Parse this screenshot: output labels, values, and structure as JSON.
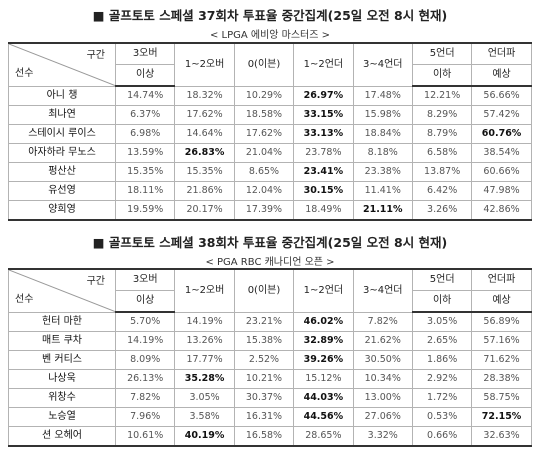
{
  "tables": [
    {
      "title": "■ 골프토토 스페셜 37회차 투표율 중간집계(25일 오전 8시 현재)",
      "subtitle": "< LPGA 에비앙 마스터즈 >",
      "header_label_top": "구간",
      "header_label_bottom": "선수",
      "columns": [
        {
          "line1": "3오버",
          "line2": "이상"
        },
        {
          "line1": "1~2오버",
          "line2": ""
        },
        {
          "line1": "0(이븐)",
          "line2": ""
        },
        {
          "line1": "1~2언더",
          "line2": ""
        },
        {
          "line1": "3~4언더",
          "line2": ""
        },
        {
          "line1": "5언더",
          "line2": "이하"
        },
        {
          "line1": "언더파",
          "line2": "예상"
        }
      ],
      "rows": [
        {
          "name": "아니 챙",
          "values": [
            "14.74%",
            "18.32%",
            "10.29%",
            "26.97%",
            "17.48%",
            "12.21%",
            "56.66%"
          ],
          "bold": [
            3
          ]
        },
        {
          "name": "최나연",
          "values": [
            "6.37%",
            "17.62%",
            "18.58%",
            "33.15%",
            "15.98%",
            "8.29%",
            "57.42%"
          ],
          "bold": [
            3
          ]
        },
        {
          "name": "스테이시 루이스",
          "values": [
            "6.98%",
            "14.64%",
            "17.62%",
            "33.13%",
            "18.84%",
            "8.79%",
            "60.76%"
          ],
          "bold": [
            3,
            6
          ]
        },
        {
          "name": "아자하라 무노스",
          "values": [
            "13.59%",
            "26.83%",
            "21.04%",
            "23.78%",
            "8.18%",
            "6.58%",
            "38.54%"
          ],
          "bold": [
            1
          ]
        },
        {
          "name": "펑산산",
          "values": [
            "15.35%",
            "15.35%",
            "8.65%",
            "23.41%",
            "23.38%",
            "13.87%",
            "60.66%"
          ],
          "bold": [
            3
          ]
        },
        {
          "name": "유선영",
          "values": [
            "18.11%",
            "21.86%",
            "12.04%",
            "30.15%",
            "11.41%",
            "6.42%",
            "47.98%"
          ],
          "bold": [
            3
          ]
        },
        {
          "name": "양희영",
          "values": [
            "19.59%",
            "20.17%",
            "17.39%",
            "18.49%",
            "21.11%",
            "3.26%",
            "42.86%"
          ],
          "bold": [
            4
          ]
        }
      ]
    },
    {
      "title": "■ 골프토토 스페셜 38회차 투표율 중간집계(25일 오전 8시 현재)",
      "subtitle": "< PGA RBC 캐나디언 오픈 >",
      "header_label_top": "구간",
      "header_label_bottom": "선수",
      "columns": [
        {
          "line1": "3오버",
          "line2": "이상"
        },
        {
          "line1": "1~2오버",
          "line2": ""
        },
        {
          "line1": "0(이븐)",
          "line2": ""
        },
        {
          "line1": "1~2언더",
          "line2": ""
        },
        {
          "line1": "3~4언더",
          "line2": ""
        },
        {
          "line1": "5언더",
          "line2": "이하"
        },
        {
          "line1": "언더파",
          "line2": "예상"
        }
      ],
      "rows": [
        {
          "name": "헌터 마한",
          "values": [
            "5.70%",
            "14.19%",
            "23.21%",
            "46.02%",
            "7.82%",
            "3.05%",
            "56.89%"
          ],
          "bold": [
            3
          ]
        },
        {
          "name": "매트 쿠차",
          "values": [
            "14.19%",
            "13.26%",
            "15.38%",
            "32.89%",
            "21.62%",
            "2.65%",
            "57.16%"
          ],
          "bold": [
            3
          ]
        },
        {
          "name": "벤 커티스",
          "values": [
            "8.09%",
            "17.77%",
            "2.52%",
            "39.26%",
            "30.50%",
            "1.86%",
            "71.62%"
          ],
          "bold": [
            3
          ]
        },
        {
          "name": "나상욱",
          "values": [
            "26.13%",
            "35.28%",
            "10.21%",
            "15.12%",
            "10.34%",
            "2.92%",
            "28.38%"
          ],
          "bold": [
            1
          ]
        },
        {
          "name": "위창수",
          "values": [
            "7.82%",
            "3.05%",
            "30.37%",
            "44.03%",
            "13.00%",
            "1.72%",
            "58.75%"
          ],
          "bold": [
            3
          ]
        },
        {
          "name": "노승열",
          "values": [
            "7.96%",
            "3.58%",
            "16.31%",
            "44.56%",
            "27.06%",
            "0.53%",
            "72.15%"
          ],
          "bold": [
            3,
            6
          ]
        },
        {
          "name": "션 오헤어",
          "values": [
            "10.61%",
            "40.19%",
            "16.58%",
            "28.65%",
            "3.32%",
            "0.66%",
            "32.63%"
          ],
          "bold": [
            1
          ]
        }
      ]
    }
  ]
}
